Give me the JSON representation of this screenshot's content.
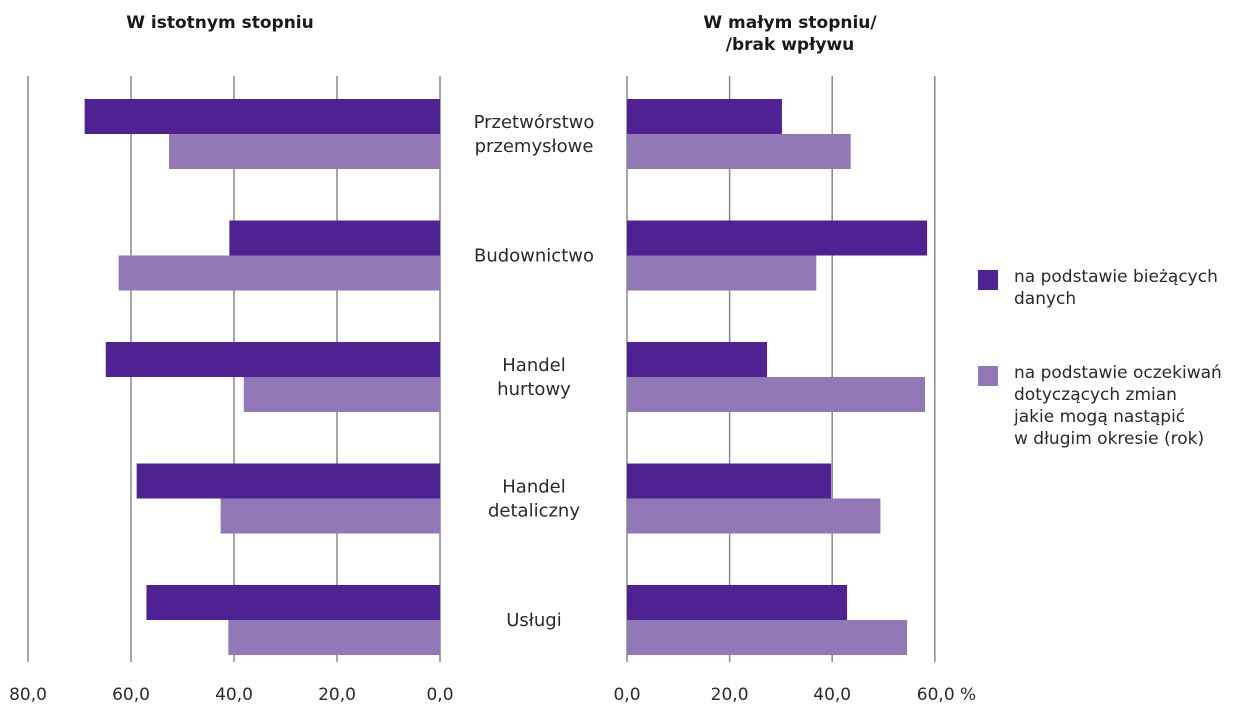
{
  "chart_data": {
    "type": "bar",
    "orientation": "horizontal",
    "categories": [
      "Przetwórstwo\nprzemysłowe",
      "Budownictwo",
      "Handel\nhurtowy",
      "Handel\ndetaliczny",
      "Usługi"
    ],
    "series": [
      {
        "name": "na podstawie bieżących\ndanych",
        "color": "#4f2293"
      },
      {
        "name": "na podstawie oczekiwań\ndotyczących zmian\njakie mogą nastąpić\nw długim okresie (rok)",
        "color": "#9278b7"
      }
    ],
    "panels": [
      {
        "title": "W istotnym stopniu",
        "direction": "leftward",
        "xlim": [
          0,
          80
        ],
        "ticks": [
          "80,0",
          "60,0",
          "40,0",
          "20,0",
          "0,0"
        ],
        "tick_values": [
          80,
          60,
          40,
          20,
          0
        ],
        "values": [
          [
            69,
            52.6
          ],
          [
            40.9,
            62.4
          ],
          [
            64.9,
            38.1
          ],
          [
            58.9,
            42.6
          ],
          [
            57,
            41.1
          ]
        ]
      },
      {
        "title": "W małym stopniu/\n/brak wpływu",
        "direction": "rightward",
        "xlim": [
          0,
          60
        ],
        "ticks": [
          "0,0",
          "20,0",
          "40,0",
          "60,0 %"
        ],
        "tick_values": [
          0,
          20,
          40,
          60
        ],
        "values": [
          [
            30.2,
            43.6
          ],
          [
            58.5,
            36.9
          ],
          [
            27.3,
            58.1
          ],
          [
            39.8,
            49.4
          ],
          [
            42.9,
            54.6
          ]
        ]
      }
    ],
    "grid": true,
    "legend": "right"
  }
}
